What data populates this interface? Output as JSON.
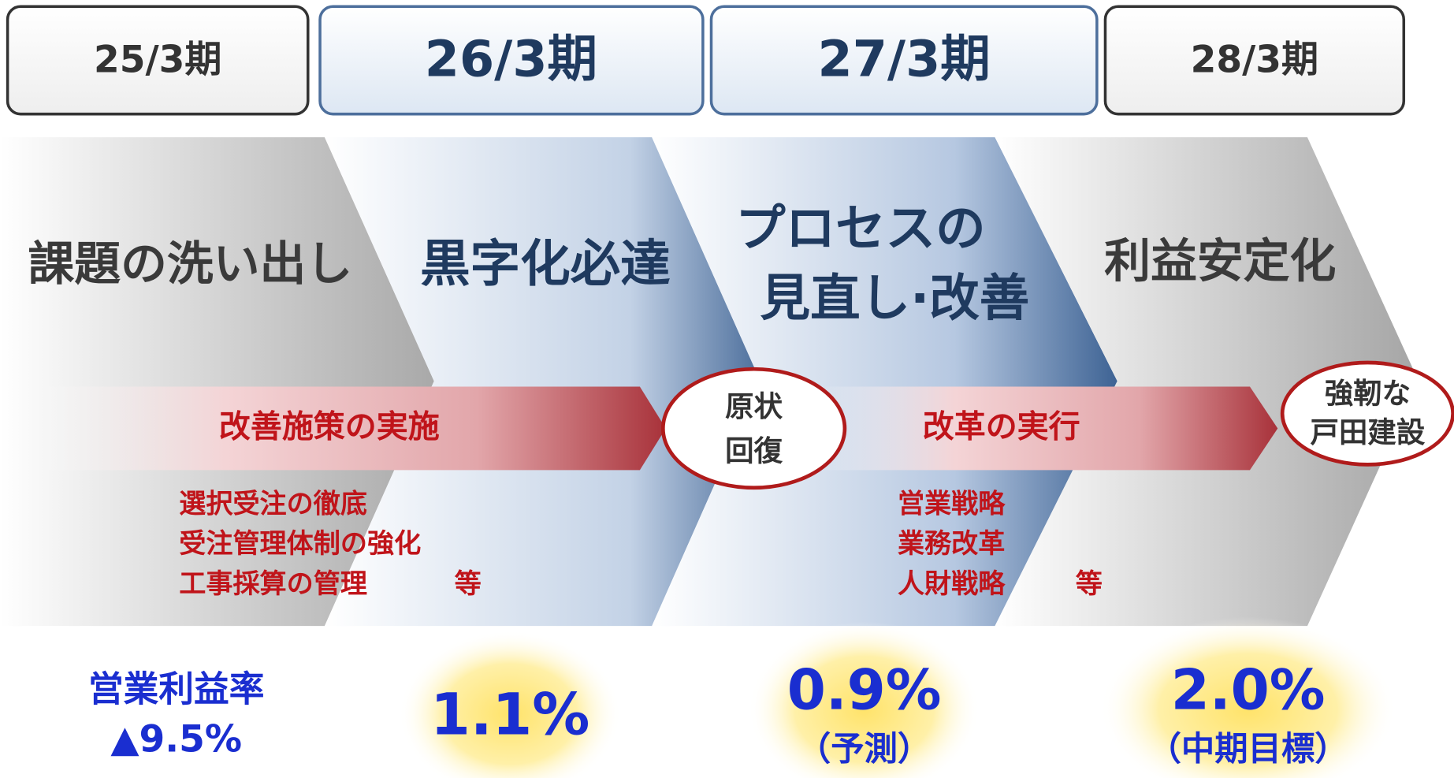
{
  "periods": [
    "25/3期",
    "26/3期",
    "27/3期",
    "28/3期"
  ],
  "phases": [
    [
      "課題の洗い出し"
    ],
    [
      "黒字化必達"
    ],
    [
      "プロセスの",
      "見直し·改善"
    ],
    [
      "利益安定化"
    ]
  ],
  "arrows": [
    {
      "label": "改善施策の実施",
      "items": [
        "選択受注の徹底",
        "受注管理体制の強化",
        "工事採算の管理"
      ],
      "suffix": "等"
    },
    {
      "label": "改革の実行",
      "items": [
        "営業戦略",
        "業務改革",
        "人財戦略"
      ],
      "suffix": "等"
    }
  ],
  "milestones": [
    [
      "原状",
      "回復"
    ],
    [
      "強靭な",
      "戸田建設"
    ]
  ],
  "results": [
    [
      "営業利益率",
      "▲9.5%"
    ],
    [
      "1.1%"
    ],
    [
      "0.9%",
      "（予測）"
    ],
    [
      "2.0%",
      "（中期目標）"
    ]
  ]
}
